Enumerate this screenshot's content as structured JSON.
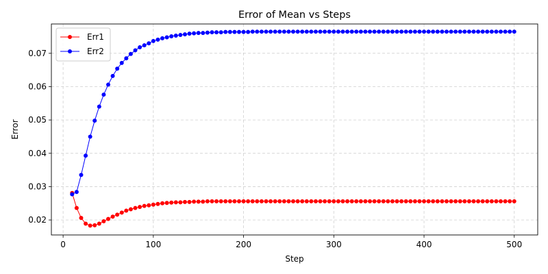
{
  "chart_data": {
    "type": "line",
    "title": "Error of Mean vs Steps",
    "xlabel": "Step",
    "ylabel": "Error",
    "xlim": [
      -13,
      526
    ],
    "ylim": [
      0.0155,
      0.0788
    ],
    "xticks": [
      0,
      100,
      200,
      300,
      400,
      500
    ],
    "yticks": [
      0.02,
      0.03,
      0.04,
      0.05,
      0.06,
      0.07
    ],
    "xtick_labels": [
      "0",
      "100",
      "200",
      "300",
      "400",
      "500"
    ],
    "ytick_labels": [
      "0.02",
      "0.03",
      "0.04",
      "0.05",
      "0.06",
      "0.07"
    ],
    "grid": true,
    "legend_position": "top-left",
    "x": [
      10,
      15,
      20,
      25,
      30,
      35,
      40,
      45,
      50,
      55,
      60,
      65,
      70,
      75,
      80,
      85,
      90,
      95,
      100,
      105,
      110,
      115,
      120,
      125,
      130,
      135,
      140,
      145,
      150,
      155,
      160,
      165,
      170,
      175,
      180,
      185,
      190,
      195,
      200,
      205,
      210,
      215,
      220,
      225,
      230,
      235,
      240,
      245,
      250,
      255,
      260,
      265,
      270,
      275,
      280,
      285,
      290,
      295,
      300,
      305,
      310,
      315,
      320,
      325,
      330,
      335,
      340,
      345,
      350,
      355,
      360,
      365,
      370,
      375,
      380,
      385,
      390,
      395,
      400,
      405,
      410,
      415,
      420,
      425,
      430,
      435,
      440,
      445,
      450,
      455,
      460,
      465,
      470,
      475,
      480,
      485,
      490,
      495,
      500
    ],
    "series": [
      {
        "name": "Err1",
        "color": "#ff0000",
        "values": [
          0.0281,
          0.0236,
          0.0206,
          0.0189,
          0.0183,
          0.0184,
          0.0189,
          0.0196,
          0.0203,
          0.021,
          0.0216,
          0.0222,
          0.0228,
          0.0232,
          0.0236,
          0.0239,
          0.0242,
          0.0244,
          0.0246,
          0.0248,
          0.025,
          0.0251,
          0.0252,
          0.0253,
          0.0253,
          0.0254,
          0.0254,
          0.0255,
          0.0255,
          0.0255,
          0.0256,
          0.0256,
          0.0256,
          0.0256,
          0.0256,
          0.0256,
          0.0256,
          0.0256,
          0.0256,
          0.0256,
          0.0256,
          0.0256,
          0.0256,
          0.0256,
          0.0256,
          0.0256,
          0.0256,
          0.0256,
          0.0256,
          0.0256,
          0.0256,
          0.0256,
          0.0256,
          0.0256,
          0.0256,
          0.0256,
          0.0256,
          0.0256,
          0.0256,
          0.0256,
          0.0256,
          0.0256,
          0.0256,
          0.0256,
          0.0256,
          0.0256,
          0.0256,
          0.0256,
          0.0256,
          0.0256,
          0.0256,
          0.0256,
          0.0256,
          0.0256,
          0.0256,
          0.0256,
          0.0256,
          0.0256,
          0.0256,
          0.0256,
          0.0256,
          0.0256,
          0.0256,
          0.0256,
          0.0256,
          0.0256,
          0.0256,
          0.0256,
          0.0256,
          0.0256,
          0.0256,
          0.0256,
          0.0256,
          0.0256,
          0.0256,
          0.0256,
          0.0256,
          0.0256,
          0.0256
        ]
      },
      {
        "name": "Err2",
        "color": "#0000ff",
        "values": [
          0.0277,
          0.0284,
          0.0335,
          0.0393,
          0.045,
          0.0498,
          0.054,
          0.0576,
          0.0606,
          0.0632,
          0.0654,
          0.0671,
          0.0685,
          0.0698,
          0.0709,
          0.0718,
          0.0724,
          0.073,
          0.0737,
          0.0741,
          0.0745,
          0.0748,
          0.0751,
          0.0753,
          0.0755,
          0.0757,
          0.0759,
          0.076,
          0.0761,
          0.0761,
          0.0762,
          0.0763,
          0.0763,
          0.0763,
          0.0764,
          0.0764,
          0.0764,
          0.0764,
          0.0764,
          0.0764,
          0.0765,
          0.0765,
          0.0765,
          0.0765,
          0.0765,
          0.0765,
          0.0765,
          0.0765,
          0.0765,
          0.0765,
          0.0765,
          0.0765,
          0.0765,
          0.0765,
          0.0765,
          0.0765,
          0.0765,
          0.0765,
          0.0765,
          0.0765,
          0.0765,
          0.0765,
          0.0765,
          0.0765,
          0.0765,
          0.0765,
          0.0765,
          0.0765,
          0.0765,
          0.0765,
          0.0765,
          0.0765,
          0.0765,
          0.0765,
          0.0765,
          0.0765,
          0.0765,
          0.0765,
          0.0765,
          0.0765,
          0.0765,
          0.0765,
          0.0765,
          0.0765,
          0.0765,
          0.0765,
          0.0765,
          0.0765,
          0.0765,
          0.0765,
          0.0765,
          0.0765,
          0.0765,
          0.0765,
          0.0765,
          0.0765,
          0.0765,
          0.0765,
          0.0765
        ]
      }
    ]
  }
}
